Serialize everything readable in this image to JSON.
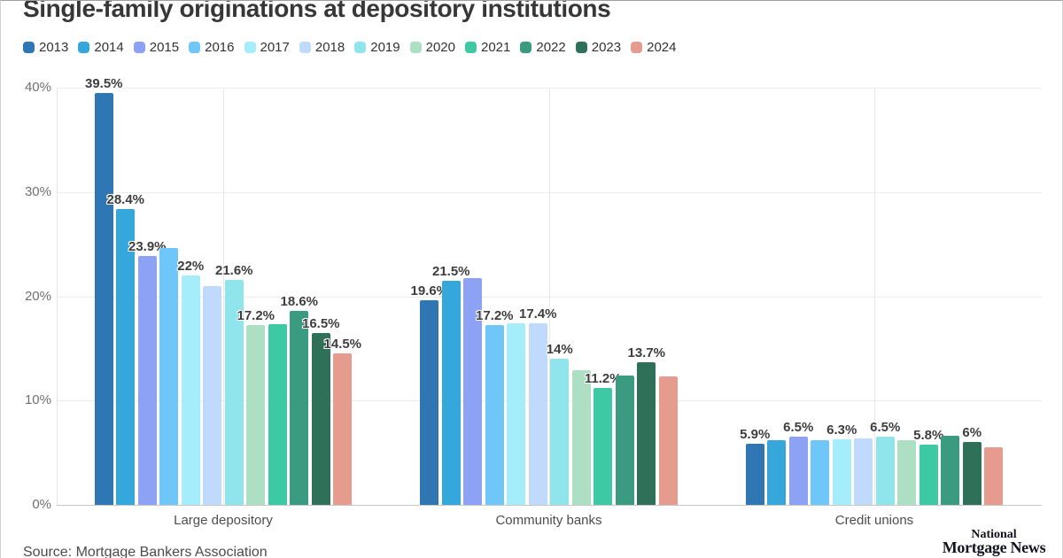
{
  "title": "Single-family originations at depository institutions",
  "source": "Source: Mortgage Bankers Association",
  "logo": {
    "line1": "National",
    "line2": "Mortgage News"
  },
  "chart_data": {
    "type": "bar",
    "title": "Single-family originations at depository institutions",
    "categories": [
      "Large depository",
      "Community banks",
      "Credit unions"
    ],
    "yticks": [
      "0%",
      "10%",
      "20%",
      "30%",
      "40%"
    ],
    "ylim": [
      0,
      40
    ],
    "xlabel": "",
    "ylabel": "",
    "grid": true,
    "legend_position": "top",
    "colors": [
      "#2e77b4",
      "#35a7da",
      "#8da2f4",
      "#6fc6f9",
      "#a6edfb",
      "#bfdafc",
      "#90e5ec",
      "#addfc4",
      "#3cc9a4",
      "#3a9b80",
      "#2e7158",
      "#e59b8e"
    ],
    "series": [
      {
        "name": "2013",
        "values": [
          39.5,
          19.6,
          5.9
        ],
        "labels": [
          "39.5%",
          "19.6%",
          "5.9%"
        ]
      },
      {
        "name": "2014",
        "values": [
          28.4,
          21.5,
          6.2
        ],
        "labels": [
          "28.4%",
          "21.5%",
          null
        ]
      },
      {
        "name": "2015",
        "values": [
          23.9,
          21.7,
          6.5
        ],
        "labels": [
          "23.9%",
          null,
          "6.5%"
        ]
      },
      {
        "name": "2016",
        "values": [
          24.6,
          17.2,
          6.2
        ],
        "labels": [
          null,
          "17.2%",
          null
        ]
      },
      {
        "name": "2017",
        "values": [
          22.0,
          17.4,
          6.3
        ],
        "labels": [
          "22%",
          null,
          "6.3%"
        ]
      },
      {
        "name": "2018",
        "values": [
          21.0,
          17.4,
          6.4
        ],
        "labels": [
          null,
          "17.4%",
          null
        ]
      },
      {
        "name": "2019",
        "values": [
          21.6,
          14.0,
          6.5
        ],
        "labels": [
          "21.6%",
          "14%",
          "6.5%"
        ]
      },
      {
        "name": "2020",
        "values": [
          17.2,
          12.9,
          6.2
        ],
        "labels": [
          "17.2%",
          null,
          null
        ]
      },
      {
        "name": "2021",
        "values": [
          17.3,
          11.2,
          5.8
        ],
        "labels": [
          null,
          "11.2%",
          "5.8%"
        ]
      },
      {
        "name": "2022",
        "values": [
          18.6,
          12.4,
          6.6
        ],
        "labels": [
          "18.6%",
          null,
          null
        ]
      },
      {
        "name": "2023",
        "values": [
          16.5,
          13.7,
          6.0
        ],
        "labels": [
          "16.5%",
          "13.7%",
          "6%"
        ]
      },
      {
        "name": "2024",
        "values": [
          14.5,
          12.3,
          5.5
        ],
        "labels": [
          "14.5%",
          null,
          null
        ]
      }
    ]
  }
}
